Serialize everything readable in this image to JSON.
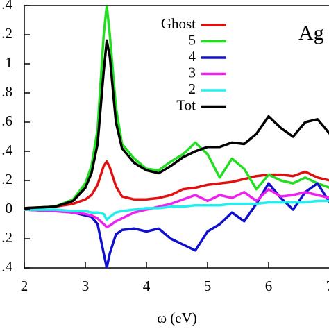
{
  "chart_data": {
    "type": "line",
    "title": "Ag",
    "xlabel": "ω (eV)",
    "x": [
      2,
      2.5,
      2.8,
      3.0,
      3.1,
      3.2,
      3.3,
      3.35,
      3.4,
      3.5,
      3.6,
      3.8,
      4.0,
      4.2,
      4.4,
      4.6,
      4.8,
      5.0,
      5.2,
      5.4,
      5.6,
      5.8,
      6.0,
      6.2,
      6.4,
      6.6,
      6.8,
      7.0
    ],
    "series": [
      {
        "name": "Ghost",
        "color": "#e01010",
        "values": [
          0.01,
          0.02,
          0.04,
          0.07,
          0.1,
          0.17,
          0.3,
          0.33,
          0.29,
          0.16,
          0.09,
          0.07,
          0.07,
          0.08,
          0.1,
          0.14,
          0.15,
          0.17,
          0.18,
          0.19,
          0.21,
          0.23,
          0.24,
          0.24,
          0.23,
          0.26,
          0.22,
          0.2
        ]
      },
      {
        "name": "5",
        "color": "#22dd22",
        "values": [
          0.01,
          0.02,
          0.07,
          0.18,
          0.3,
          0.55,
          1.2,
          1.4,
          1.2,
          0.7,
          0.45,
          0.35,
          0.28,
          0.27,
          0.33,
          0.38,
          0.46,
          0.38,
          0.22,
          0.35,
          0.28,
          0.14,
          0.24,
          0.2,
          0.18,
          0.22,
          0.18,
          0.15
        ]
      },
      {
        "name": "4",
        "color": "#1010cc",
        "values": [
          0,
          -0.01,
          -0.02,
          -0.04,
          -0.05,
          -0.1,
          -0.3,
          -0.4,
          -0.3,
          -0.17,
          -0.14,
          -0.13,
          -0.15,
          -0.13,
          -0.2,
          -0.24,
          -0.28,
          -0.15,
          -0.1,
          -0.02,
          -0.08,
          0.04,
          0.18,
          0.08,
          0,
          0.12,
          0.18,
          0.05
        ]
      },
      {
        "name": "3",
        "color": "#ee22ee",
        "values": [
          0,
          -0.01,
          -0.02,
          -0.03,
          -0.04,
          -0.06,
          -0.1,
          -0.12,
          -0.11,
          -0.08,
          -0.06,
          -0.02,
          0,
          0.02,
          0.04,
          0.07,
          0.1,
          0.06,
          0.1,
          0.08,
          0.12,
          0.06,
          0.14,
          0.09,
          0.1,
          0.12,
          0.1,
          0.08
        ]
      },
      {
        "name": "2",
        "color": "#22eeee",
        "values": [
          0,
          0,
          -0.01,
          -0.01,
          -0.02,
          -0.02,
          -0.03,
          -0.07,
          -0.05,
          -0.02,
          -0.01,
          0,
          0.01,
          0.01,
          0.02,
          0.02,
          0.03,
          0.03,
          0.03,
          0.04,
          0.04,
          0.04,
          0.05,
          0.05,
          0.05,
          0.05,
          0.06,
          0.06
        ]
      },
      {
        "name": "Tot",
        "color": "#000000",
        "values": [
          0.01,
          0.02,
          0.06,
          0.15,
          0.25,
          0.45,
          0.95,
          1.16,
          1.05,
          0.6,
          0.42,
          0.32,
          0.27,
          0.25,
          0.3,
          0.36,
          0.4,
          0.43,
          0.43,
          0.46,
          0.45,
          0.52,
          0.64,
          0.56,
          0.5,
          0.6,
          0.62,
          0.52
        ]
      }
    ],
    "xlim": [
      2,
      7
    ],
    "xticks": [
      2,
      3,
      4,
      5,
      6,
      7
    ],
    "ylim": [
      -0.4,
      1.4
    ],
    "yticks": [
      {
        "value": -0.4,
        "label": ".4"
      },
      {
        "value": -0.2,
        "label": ".2"
      },
      0,
      {
        "value": 0.2,
        "label": ".2"
      },
      {
        "value": 0.4,
        "label": ".4"
      },
      {
        "value": 0.6,
        "label": ".6"
      },
      {
        "value": 0.8,
        "label": ".8"
      },
      1,
      {
        "value": 1.2,
        "label": ".2"
      },
      {
        "value": 1.4,
        "label": ".4"
      }
    ]
  }
}
